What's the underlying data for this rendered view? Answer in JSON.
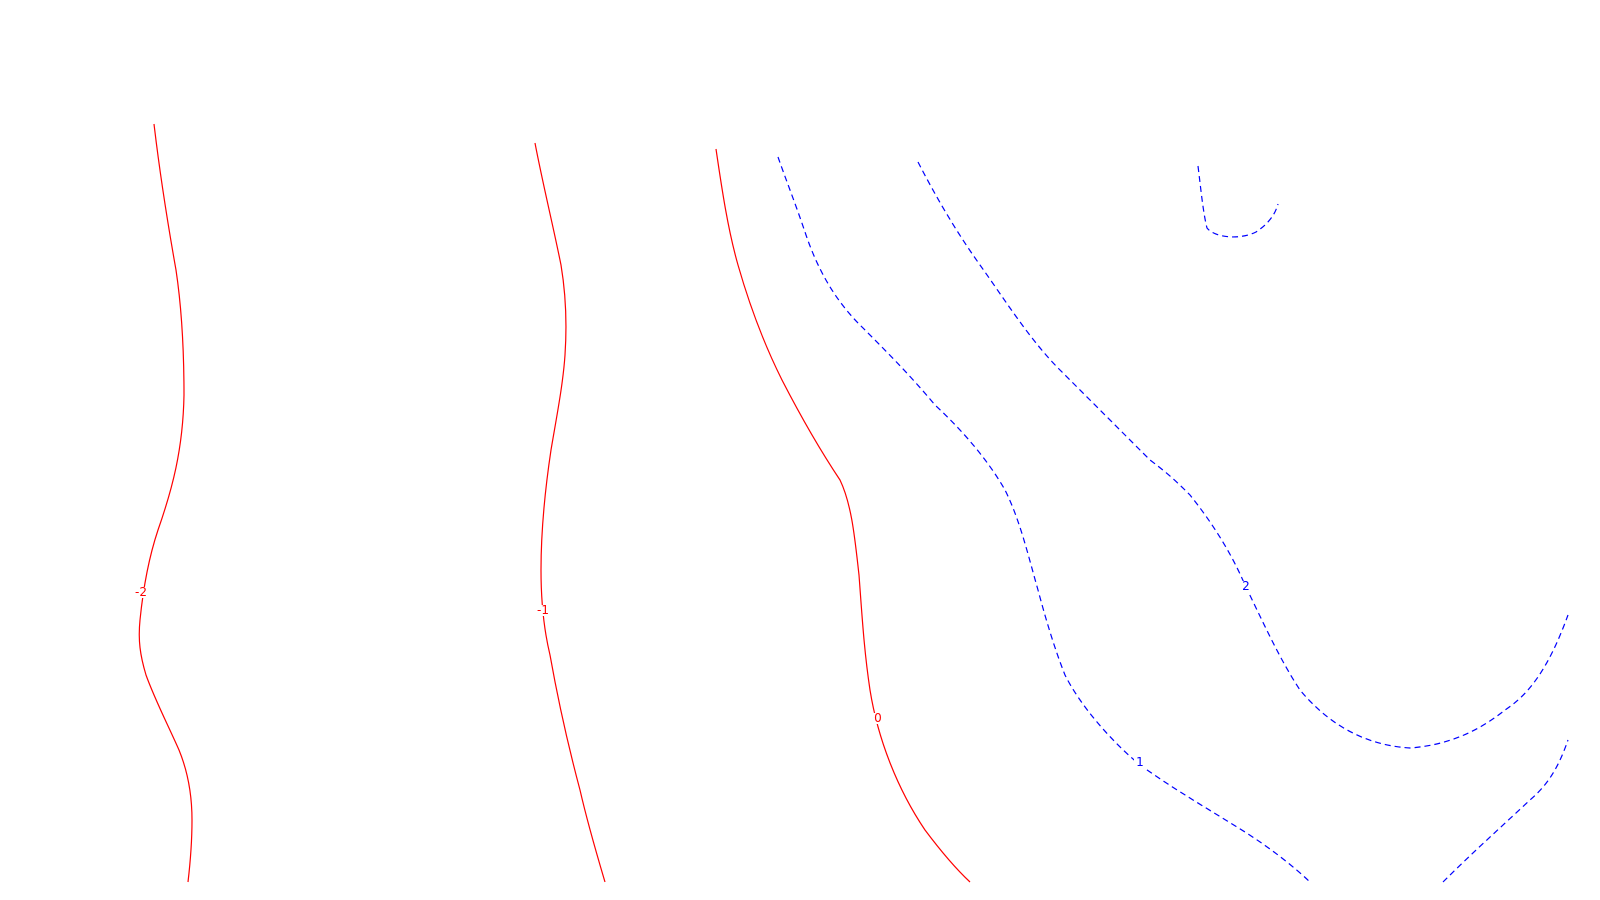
{
  "chart_data": {
    "type": "contour",
    "title": "",
    "xlabel": "",
    "ylabel": "",
    "negative_style": {
      "color": "#ff0000",
      "dash": "solid"
    },
    "positive_style": {
      "color": "#0000ff",
      "dash": "dashed"
    },
    "levels": [
      {
        "value": -2,
        "label": "-2",
        "sign": "negative"
      },
      {
        "value": -1,
        "label": "-1",
        "sign": "negative"
      },
      {
        "value": 0,
        "label": "0",
        "sign": "negative"
      },
      {
        "value": 1,
        "label": "1",
        "sign": "positive"
      },
      {
        "value": 2,
        "label": "2",
        "sign": "positive"
      }
    ]
  }
}
